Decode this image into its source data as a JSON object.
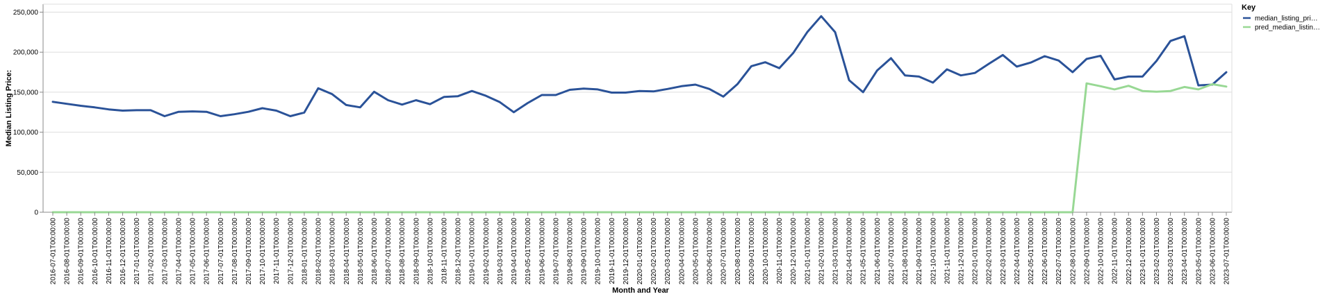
{
  "chart_data": {
    "type": "line",
    "xlabel": "Month and Year",
    "ylabel": "Median Listing Price:",
    "ylim": [
      0,
      260000
    ],
    "yticks": [
      0,
      50000,
      100000,
      150000,
      200000,
      250000
    ],
    "ytick_labels": [
      "0",
      "50,000",
      "100,000",
      "150,000",
      "200,000",
      "250,000"
    ],
    "grid": true,
    "legend": {
      "title": "Key",
      "position": "top-right"
    },
    "x": [
      "2016-07-01T00:00:00",
      "2016-08-01T00:00:00",
      "2016-09-01T00:00:00",
      "2016-10-01T00:00:00",
      "2016-11-01T00:00:00",
      "2016-12-01T00:00:00",
      "2017-01-01T00:00:00",
      "2017-02-01T00:00:00",
      "2017-03-01T00:00:00",
      "2017-04-01T00:00:00",
      "2017-05-01T00:00:00",
      "2017-06-01T00:00:00",
      "2017-07-01T00:00:00",
      "2017-08-01T00:00:00",
      "2017-09-01T00:00:00",
      "2017-10-01T00:00:00",
      "2017-11-01T00:00:00",
      "2017-12-01T00:00:00",
      "2018-01-01T00:00:00",
      "2018-02-01T00:00:00",
      "2018-03-01T00:00:00",
      "2018-04-01T00:00:00",
      "2018-05-01T00:00:00",
      "2018-06-01T00:00:00",
      "2018-07-01T00:00:00",
      "2018-08-01T00:00:00",
      "2018-09-01T00:00:00",
      "2018-10-01T00:00:00",
      "2018-11-01T00:00:00",
      "2018-12-01T00:00:00",
      "2019-01-01T00:00:00",
      "2019-02-01T00:00:00",
      "2019-03-01T00:00:00",
      "2019-04-01T00:00:00",
      "2019-05-01T00:00:00",
      "2019-06-01T00:00:00",
      "2019-07-01T00:00:00",
      "2019-08-01T00:00:00",
      "2019-09-01T00:00:00",
      "2019-10-01T00:00:00",
      "2019-11-01T00:00:00",
      "2019-12-01T00:00:00",
      "2020-01-01T00:00:00",
      "2020-02-01T00:00:00",
      "2020-03-01T00:00:00",
      "2020-04-01T00:00:00",
      "2020-05-01T00:00:00",
      "2020-06-01T00:00:00",
      "2020-07-01T00:00:00",
      "2020-08-01T00:00:00",
      "2020-09-01T00:00:00",
      "2020-10-01T00:00:00",
      "2020-11-01T00:00:00",
      "2020-12-01T00:00:00",
      "2021-01-01T00:00:00",
      "2021-02-01T00:00:00",
      "2021-03-01T00:00:00",
      "2021-04-01T00:00:00",
      "2021-05-01T00:00:00",
      "2021-06-01T00:00:00",
      "2021-07-01T00:00:00",
      "2021-08-01T00:00:00",
      "2021-09-01T00:00:00",
      "2021-10-01T00:00:00",
      "2021-11-01T00:00:00",
      "2021-12-01T00:00:00",
      "2022-01-01T00:00:00",
      "2022-02-01T00:00:00",
      "2022-03-01T00:00:00",
      "2022-04-01T00:00:00",
      "2022-05-01T00:00:00",
      "2022-06-01T00:00:00",
      "2022-07-01T00:00:00",
      "2022-08-01T00:00:00",
      "2022-09-01T00:00:00",
      "2022-10-01T00:00:00",
      "2022-11-01T00:00:00",
      "2022-12-01T00:00:00",
      "2023-01-01T00:00:00",
      "2023-02-01T00:00:00",
      "2023-03-01T00:00:00",
      "2023-04-01T00:00:00",
      "2023-05-01T00:00:00",
      "2023-06-01T00:00:00",
      "2023-07-01T00:00:00"
    ],
    "series": [
      {
        "name": "median_listing_pri…",
        "color": "#2a5298",
        "values": [
          138000,
          135500,
          133000,
          131000,
          128500,
          127000,
          127500,
          127500,
          120000,
          125500,
          126000,
          125500,
          120000,
          122500,
          125500,
          130000,
          127000,
          120000,
          124500,
          155000,
          147500,
          134000,
          131000,
          150500,
          140000,
          134500,
          140000,
          135000,
          144000,
          145000,
          151500,
          145500,
          137500,
          125000,
          136500,
          146500,
          146500,
          153000,
          154500,
          153500,
          149500,
          149500,
          151500,
          151000,
          154000,
          157500,
          159500,
          154000,
          144500,
          160000,
          182500,
          187500,
          180000,
          199000,
          225000,
          245000,
          225000,
          165000,
          150000,
          177000,
          192500,
          171000,
          169500,
          162000,
          178500,
          171000,
          174000,
          185500,
          196500,
          182000,
          187000,
          195000,
          189500,
          175000,
          191500,
          195500,
          166000,
          169500,
          169500,
          189000,
          214000,
          220000,
          158500,
          159500,
          175000
        ]
      },
      {
        "name": "pred_median_listin…",
        "color": "#98d894",
        "values": [
          0,
          0,
          0,
          0,
          0,
          0,
          0,
          0,
          0,
          0,
          0,
          0,
          0,
          0,
          0,
          0,
          0,
          0,
          0,
          0,
          0,
          0,
          0,
          0,
          0,
          0,
          0,
          0,
          0,
          0,
          0,
          0,
          0,
          0,
          0,
          0,
          0,
          0,
          0,
          0,
          0,
          0,
          0,
          0,
          0,
          0,
          0,
          0,
          0,
          0,
          0,
          0,
          0,
          0,
          0,
          0,
          0,
          0,
          0,
          0,
          0,
          0,
          0,
          0,
          0,
          0,
          0,
          0,
          0,
          0,
          0,
          0,
          0,
          0,
          161000,
          157500,
          153500,
          158000,
          151500,
          150500,
          151500,
          156500,
          153500,
          160000,
          157000
        ]
      }
    ]
  }
}
